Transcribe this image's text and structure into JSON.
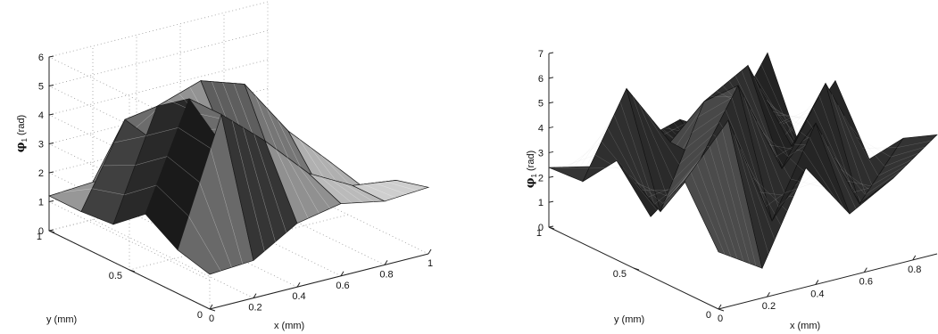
{
  "chart_data": [
    {
      "type": "surface",
      "title": "",
      "xlabel": "x (mm)",
      "ylabel": "y (mm)",
      "zlabel_symbol": "φ",
      "zlabel_subscript": "1",
      "zlabel_unit": "(rad)",
      "xlim": [
        0,
        1
      ],
      "ylim": [
        0,
        1
      ],
      "zlim": [
        0,
        6
      ],
      "x_ticks": [
        "0",
        "0.2",
        "0.4",
        "0.6",
        "0.8",
        "1"
      ],
      "y_ticks": [
        "0",
        "0.5",
        "1"
      ],
      "z_ticks": [
        "0",
        "1",
        "2",
        "3",
        "4",
        "5",
        "6"
      ],
      "grid": true,
      "surface": {
        "rows_y": [
          0,
          0.2,
          0.4,
          0.6,
          0.8,
          1.0
        ],
        "cols_x": [
          0,
          0.2,
          0.4,
          0.6,
          0.8,
          1.0
        ],
        "z": [
          [
            1.2,
            1.3,
            2.2,
            2.5,
            2.2,
            2.3
          ],
          [
            1.5,
            5.8,
            4.5,
            3.0,
            2.2,
            2.0
          ],
          [
            2.2,
            5.8,
            3.3,
            2.5,
            1.5,
            1.2
          ],
          [
            1.3,
            5.0,
            5.5,
            5.0,
            3.0,
            1.5
          ],
          [
            1.2,
            4.0,
            2.5,
            4.5,
            2.5,
            1.6
          ],
          [
            1.2,
            1.3,
            1.2,
            1.0,
            1.3,
            1.2
          ]
        ]
      }
    },
    {
      "type": "surface",
      "title": "",
      "xlabel": "x (mm)",
      "ylabel": "y (mm)",
      "zlabel_symbol": "φ",
      "zlabel_subscript": "1",
      "zlabel_unit": "(rad)",
      "xlim": [
        0,
        0.9
      ],
      "ylim": [
        0,
        1
      ],
      "zlim": [
        0,
        7
      ],
      "x_ticks": [
        "0",
        "0.2",
        "0.4",
        "0.6",
        "0.8"
      ],
      "y_ticks": [
        "0",
        "0.5",
        "1"
      ],
      "z_ticks": [
        "0",
        "1",
        "2",
        "3",
        "4",
        "5",
        "6",
        "7"
      ],
      "grid": false,
      "surface": {
        "rows_y": [
          0,
          0.2,
          0.4,
          0.6,
          0.8,
          1.0
        ],
        "cols_x": [
          0,
          0.18,
          0.36,
          0.54,
          0.72,
          0.9
        ],
        "z": [
          [
            2.3,
            1.2,
            4.8,
            2.5,
            3.5,
            4.8
          ],
          [
            4.5,
            6.5,
            2.0,
            5.5,
            1.8,
            4.0
          ],
          [
            2.4,
            3.8,
            6.8,
            3.0,
            6.0,
            2.5
          ],
          [
            4.0,
            1.5,
            5.5,
            6.5,
            2.8,
            5.0
          ],
          [
            2.5,
            5.8,
            3.2,
            1.8,
            4.5,
            1.5
          ],
          [
            2.4,
            2.0,
            2.5,
            3.0,
            2.0,
            4.8
          ]
        ]
      }
    }
  ]
}
